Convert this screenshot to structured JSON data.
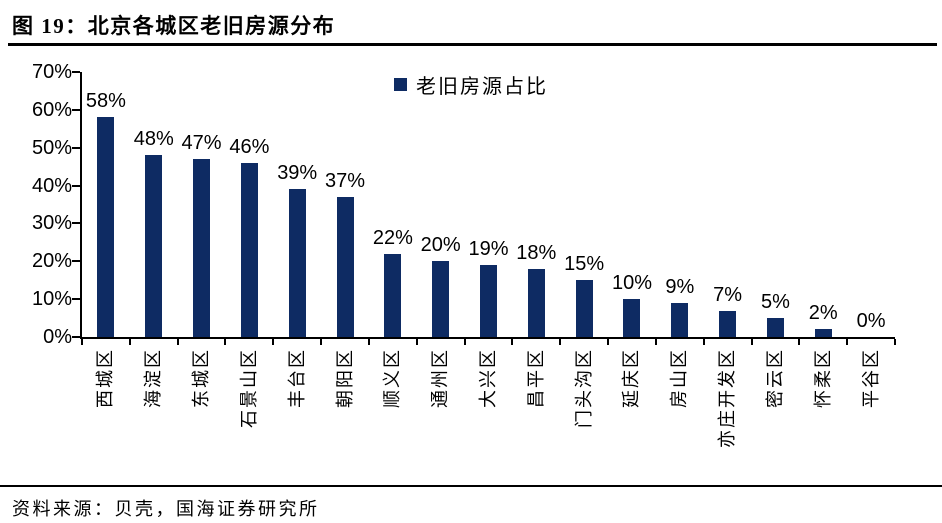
{
  "title": "图 19：北京各城区老旧房源分布",
  "source": "资料来源：贝壳，国海证券研究所",
  "colors": {
    "bar": "#0E2B63",
    "axis": "#000000",
    "text": "#000000",
    "background": "#FFFFFF"
  },
  "chart_data": {
    "type": "bar",
    "title": "图 19：北京各城区老旧房源分布",
    "legend": "老旧房源占比",
    "legend_position": "top-center",
    "categories": [
      "西城区",
      "海淀区",
      "东城区",
      "石景山区",
      "丰台区",
      "朝阳区",
      "顺义区",
      "通州区",
      "大兴区",
      "昌平区",
      "门头沟区",
      "延庆区",
      "房山区",
      "亦庄开发区",
      "密云区",
      "怀柔区",
      "平谷区"
    ],
    "values": [
      58,
      48,
      47,
      46,
      39,
      37,
      22,
      20,
      19,
      18,
      15,
      10,
      9,
      7,
      5,
      2,
      0
    ],
    "value_labels": [
      "58%",
      "48%",
      "47%",
      "46%",
      "39%",
      "37%",
      "22%",
      "20%",
      "19%",
      "18%",
      "15%",
      "10%",
      "9%",
      "7%",
      "5%",
      "2%",
      "0%"
    ],
    "xlabel": "",
    "ylabel": "",
    "ylim": [
      0,
      70
    ],
    "ytick_labels": [
      "0%",
      "10%",
      "20%",
      "30%",
      "40%",
      "50%",
      "60%",
      "70%"
    ],
    "grid": false,
    "bar_color": "#0E2B63"
  }
}
